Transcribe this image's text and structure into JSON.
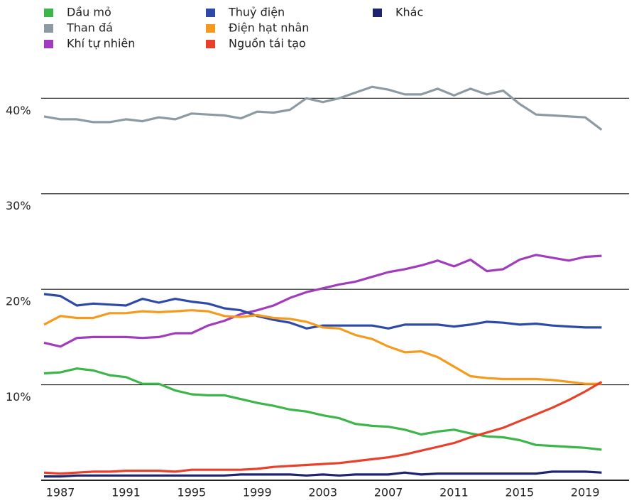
{
  "chart_data": {
    "type": "line",
    "x": [
      1986,
      1987,
      1988,
      1989,
      1990,
      1991,
      1992,
      1993,
      1994,
      1995,
      1996,
      1997,
      1998,
      1999,
      2000,
      2001,
      2002,
      2003,
      2004,
      2005,
      2006,
      2007,
      2008,
      2009,
      2010,
      2011,
      2012,
      2013,
      2014,
      2015,
      2016,
      2017,
      2018,
      2019,
      2020
    ],
    "series": [
      {
        "name": "Dầu mỏ",
        "color": "#3cb54a",
        "values": [
          11.2,
          11.3,
          11.7,
          11.5,
          11.0,
          10.8,
          10.1,
          10.1,
          9.4,
          9.0,
          8.9,
          8.9,
          8.5,
          8.1,
          7.8,
          7.4,
          7.2,
          6.8,
          6.5,
          5.9,
          5.7,
          5.6,
          5.3,
          4.8,
          5.1,
          5.3,
          4.9,
          4.6,
          4.5,
          4.2,
          3.7,
          3.6,
          3.5,
          3.4,
          3.2
        ]
      },
      {
        "name": "Than đá",
        "color": "#8c9ba3",
        "values": [
          38.1,
          37.8,
          37.8,
          37.5,
          37.5,
          37.8,
          37.6,
          38.0,
          37.8,
          38.4,
          38.3,
          38.2,
          37.9,
          38.6,
          38.5,
          38.8,
          40.0,
          39.6,
          40.0,
          40.6,
          41.2,
          40.9,
          40.4,
          40.4,
          41.0,
          40.3,
          41.0,
          40.4,
          40.8,
          39.4,
          38.3,
          38.2,
          38.1,
          38.0,
          36.7
        ]
      },
      {
        "name": "Khí tự nhiên",
        "color": "#a23cbf",
        "values": [
          14.4,
          14.0,
          14.9,
          15.0,
          15.0,
          15.0,
          14.9,
          15.0,
          15.4,
          15.4,
          16.2,
          16.7,
          17.4,
          17.8,
          18.3,
          19.1,
          19.7,
          20.1,
          20.5,
          20.8,
          21.3,
          21.8,
          22.1,
          22.5,
          23.0,
          22.4,
          23.1,
          21.9,
          22.1,
          23.1,
          23.6,
          23.3,
          23.0,
          23.4,
          23.5
        ]
      },
      {
        "name": "Thuỷ điện",
        "color": "#2e4aa8",
        "values": [
          19.5,
          19.3,
          18.3,
          18.5,
          18.4,
          18.3,
          19.0,
          18.6,
          19.0,
          18.7,
          18.5,
          18.0,
          17.8,
          17.2,
          16.8,
          16.5,
          15.9,
          16.2,
          16.2,
          16.2,
          16.2,
          15.9,
          16.3,
          16.3,
          16.3,
          16.1,
          16.3,
          16.6,
          16.5,
          16.3,
          16.4,
          16.2,
          16.1,
          16.0,
          16.0
        ]
      },
      {
        "name": "Điện hạt nhân",
        "color": "#f59a1c",
        "values": [
          16.3,
          17.2,
          17.0,
          17.0,
          17.5,
          17.5,
          17.7,
          17.6,
          17.7,
          17.8,
          17.7,
          17.2,
          17.1,
          17.3,
          17.0,
          16.9,
          16.6,
          16.0,
          15.9,
          15.2,
          14.8,
          14.0,
          13.4,
          13.5,
          12.9,
          11.9,
          10.9,
          10.7,
          10.6,
          10.6,
          10.6,
          10.5,
          10.3,
          10.1,
          10.1
        ]
      },
      {
        "name": "Nguồn tái tạo",
        "color": "#e8402a",
        "values": [
          0.8,
          0.7,
          0.8,
          0.9,
          0.9,
          1.0,
          1.0,
          1.0,
          0.9,
          1.1,
          1.1,
          1.1,
          1.1,
          1.2,
          1.4,
          1.5,
          1.6,
          1.7,
          1.8,
          2.0,
          2.2,
          2.4,
          2.7,
          3.1,
          3.5,
          3.9,
          4.5,
          5.0,
          5.5,
          6.2,
          6.9,
          7.6,
          8.4,
          9.3,
          10.3
        ]
      },
      {
        "name": "Khác",
        "color": "#1e2470",
        "values": [
          0.4,
          0.4,
          0.5,
          0.5,
          0.5,
          0.5,
          0.5,
          0.5,
          0.5,
          0.5,
          0.5,
          0.5,
          0.6,
          0.6,
          0.6,
          0.6,
          0.5,
          0.6,
          0.5,
          0.6,
          0.6,
          0.6,
          0.8,
          0.6,
          0.7,
          0.7,
          0.7,
          0.7,
          0.7,
          0.7,
          0.7,
          0.9,
          0.9,
          0.9,
          0.8
        ]
      }
    ],
    "xlim": [
      1986,
      2021.5
    ],
    "xticks": [
      1987,
      1991,
      1995,
      1999,
      2003,
      2007,
      2011,
      2015,
      2019
    ],
    "ylim": [
      0,
      43
    ],
    "yticks": [
      {
        "value": 10,
        "label": "10%"
      },
      {
        "value": 20,
        "label": "20%"
      },
      {
        "value": 30,
        "label": "30%"
      },
      {
        "value": 40,
        "label": "40%"
      }
    ],
    "grid": true
  }
}
